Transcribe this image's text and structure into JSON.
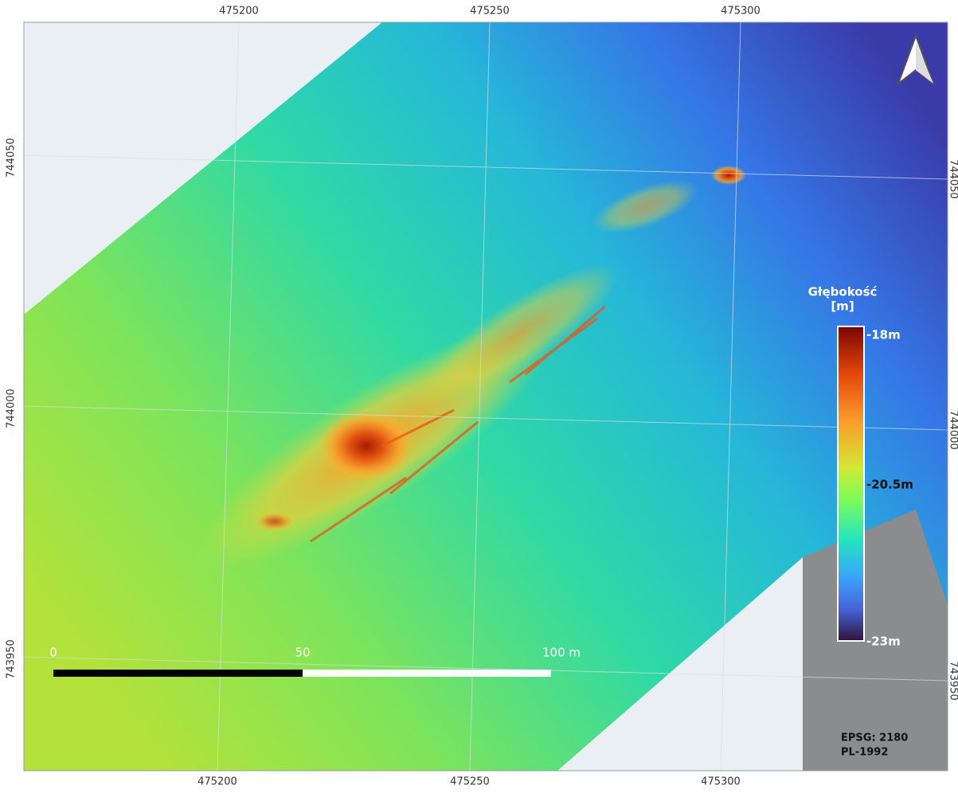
{
  "map": {
    "top_labels": [
      "475200",
      "475250",
      "475300"
    ],
    "bottom_labels": [
      "475200",
      "475250",
      "475300"
    ],
    "left_labels": [
      "744050",
      "744000",
      "743950"
    ],
    "right_labels": [
      "744050",
      "744000",
      "743950"
    ],
    "legend": {
      "title": "Głębokość",
      "unit": "[m]",
      "labels": [
        "-18m",
        "-20.5m",
        "-23m"
      ]
    },
    "scale_bar": {
      "labels": [
        "0",
        "50",
        "100 m"
      ]
    },
    "crs": [
      "EPSG: 2180",
      "PL-1992"
    ]
  }
}
